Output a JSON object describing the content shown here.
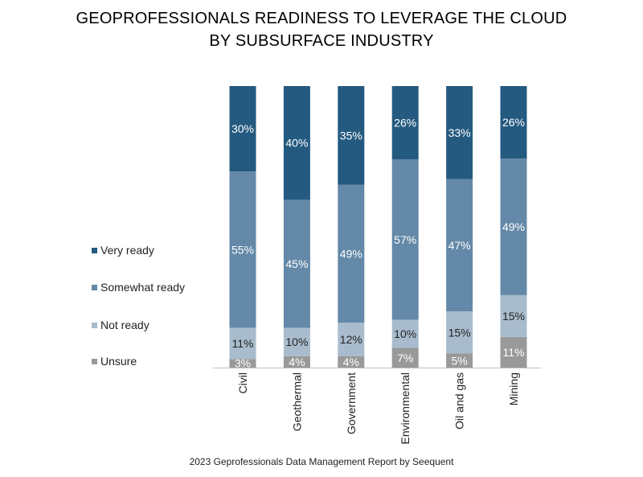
{
  "title_line1": "GEOPROFESSIONALS READINESS TO LEVERAGE THE CLOUD",
  "title_line2": "BY SUBSURFACE INDUSTRY",
  "footer": "2023 Geprofessionals Data Management Report by Seequent",
  "chart_data": {
    "type": "bar",
    "stacked": true,
    "normalized": "percent",
    "title": "GEOPROFESSIONALS READINESS TO LEVERAGE THE CLOUD BY SUBSURFACE INDUSTRY",
    "categories": [
      "Civil",
      "Geothermal",
      "Government",
      "Environmental",
      "Oil and gas",
      "Mining"
    ],
    "series": [
      {
        "name": "Unsure",
        "color": "#999999",
        "label_color": "#ffffff",
        "values": [
          3,
          4,
          4,
          7,
          5,
          11
        ]
      },
      {
        "name": "Not ready",
        "color": "#a8bccd",
        "label_color": "#222222",
        "values": [
          11,
          10,
          12,
          10,
          15,
          15
        ]
      },
      {
        "name": "Somewhat ready",
        "color": "#6489a8",
        "label_color": "#ffffff",
        "values": [
          55,
          45,
          49,
          57,
          47,
          49
        ]
      },
      {
        "name": "Very ready",
        "color": "#255a80",
        "label_color": "#ffffff",
        "values": [
          30,
          40,
          35,
          26,
          33,
          26
        ]
      }
    ],
    "value_suffix": "%",
    "legend_position": "left",
    "legend_order": [
      "Very ready",
      "Somewhat ready",
      "Not ready",
      "Unsure"
    ],
    "grid": false
  }
}
